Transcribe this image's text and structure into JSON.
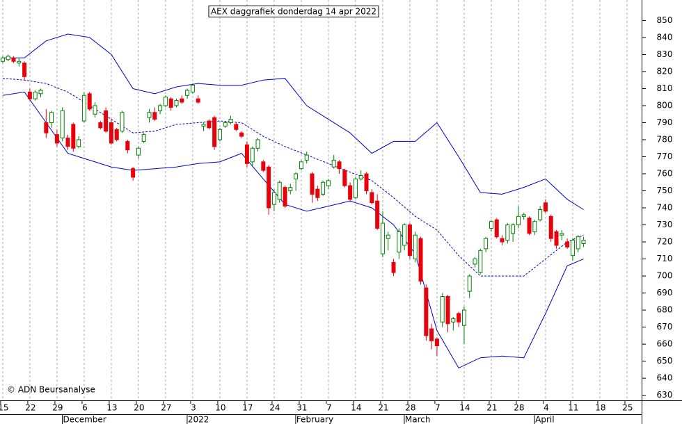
{
  "chart_data": {
    "type": "candlestick",
    "title": "AEX daggrafiek donderdag 14 apr 2022",
    "copyright": "© ADN Beursanalyse",
    "up_color": "#008000",
    "down_color": "#e8000b",
    "grid": "x",
    "ylim": [
      627,
      862
    ],
    "yticks": [
      630,
      640,
      650,
      660,
      670,
      680,
      690,
      700,
      710,
      720,
      730,
      740,
      750,
      760,
      770,
      780,
      790,
      800,
      810,
      820,
      830,
      840,
      850
    ],
    "xlim": [
      -0.5,
      117.7
    ],
    "xticks": [
      {
        "value": 0,
        "label": "15"
      },
      {
        "value": 5,
        "label": "22"
      },
      {
        "value": 10,
        "label": "29"
      },
      {
        "value": 15,
        "label": "6"
      },
      {
        "value": 20,
        "label": "13"
      },
      {
        "value": 25,
        "label": "20"
      },
      {
        "value": 30,
        "label": "27"
      },
      {
        "value": 35,
        "label": "3"
      },
      {
        "value": 40,
        "label": "10"
      },
      {
        "value": 45,
        "label": "17"
      },
      {
        "value": 50,
        "label": "24"
      },
      {
        "value": 55,
        "label": "31"
      },
      {
        "value": 60,
        "label": "7"
      },
      {
        "value": 65,
        "label": "14"
      },
      {
        "value": 70,
        "label": "21"
      },
      {
        "value": 75,
        "label": "28"
      },
      {
        "value": 80,
        "label": "7"
      },
      {
        "value": 85,
        "label": "14"
      },
      {
        "value": 90,
        "label": "21"
      },
      {
        "value": 95,
        "label": "28"
      },
      {
        "value": 100,
        "label": "4"
      },
      {
        "value": 105,
        "label": "11"
      },
      {
        "value": 110,
        "label": "18"
      },
      {
        "value": 115,
        "label": "25"
      }
    ],
    "month_ticks": [
      {
        "value": 12,
        "label": "December"
      },
      {
        "value": 35,
        "label": "2022"
      },
      {
        "value": 55,
        "label": "February"
      },
      {
        "value": 75,
        "label": "March"
      },
      {
        "value": 99,
        "label": "April"
      }
    ],
    "candles": [
      [
        826,
        829,
        825,
        828
      ],
      [
        827,
        830,
        826,
        829
      ],
      [
        828,
        829,
        825,
        826
      ],
      [
        825,
        828,
        823,
        826
      ],
      [
        825,
        826,
        815,
        817
      ],
      [
        808,
        810,
        803,
        804
      ],
      [
        804,
        809,
        803,
        808
      ],
      [
        807,
        810,
        805,
        809
      ],
      [
        790,
        798,
        781,
        784
      ],
      [
        790,
        797,
        787,
        796
      ],
      [
        783,
        786,
        776,
        778
      ],
      [
        781,
        799,
        779,
        797
      ],
      [
        781,
        783,
        774,
        776
      ],
      [
        789,
        790,
        773,
        775
      ],
      [
        776,
        782,
        775,
        780
      ],
      [
        791,
        808,
        790,
        806
      ],
      [
        807,
        808,
        797,
        798
      ],
      [
        795,
        802,
        793,
        800
      ],
      [
        790,
        791,
        786,
        787
      ],
      [
        797,
        799,
        784,
        785
      ],
      [
        790,
        792,
        777,
        778
      ],
      [
        786,
        787,
        779,
        780
      ],
      [
        785,
        797,
        784,
        796
      ],
      [
        779,
        780,
        772,
        774
      ],
      [
        763,
        764,
        756,
        758
      ],
      [
        771,
        776,
        769,
        775
      ],
      [
        779,
        784,
        778,
        783
      ],
      [
        793,
        798,
        790,
        796
      ],
      [
        796,
        799,
        791,
        792
      ],
      [
        797,
        801,
        795,
        800
      ],
      [
        800,
        806,
        799,
        805
      ],
      [
        804,
        805,
        797,
        799
      ],
      [
        800,
        804,
        799,
        803
      ],
      [
        804,
        806,
        801,
        802
      ],
      [
        806,
        810,
        804,
        809
      ],
      [
        808,
        813,
        807,
        812
      ],
      [
        804,
        806,
        801,
        802
      ],
      [
        788,
        790,
        785,
        789
      ],
      [
        791,
        792,
        786,
        787
      ],
      [
        793,
        794,
        774,
        776
      ],
      [
        780,
        787,
        779,
        786
      ],
      [
        788,
        791,
        787,
        790
      ],
      [
        790,
        794,
        789,
        792
      ],
      [
        789,
        790,
        785,
        786
      ],
      [
        784,
        785,
        781,
        782
      ],
      [
        777,
        779,
        764,
        766
      ],
      [
        767,
        776,
        764,
        775
      ],
      [
        775,
        781,
        773,
        780
      ],
      [
        767,
        768,
        761,
        762
      ],
      [
        764,
        765,
        736,
        740
      ],
      [
        742,
        751,
        738,
        749
      ],
      [
        745,
        756,
        743,
        755
      ],
      [
        752,
        753,
        740,
        741
      ],
      [
        750,
        754,
        748,
        752
      ],
      [
        757,
        761,
        750,
        760
      ],
      [
        763,
        768,
        762,
        767
      ],
      [
        768,
        773,
        766,
        771
      ],
      [
        760,
        761,
        743,
        748
      ],
      [
        751,
        753,
        744,
        746
      ],
      [
        748,
        756,
        747,
        755
      ],
      [
        753,
        757,
        751,
        756
      ],
      [
        764,
        771,
        763,
        768
      ],
      [
        767,
        768,
        760,
        763
      ],
      [
        762,
        763,
        752,
        753
      ],
      [
        753,
        755,
        744,
        745
      ],
      [
        746,
        758,
        745,
        757
      ],
      [
        757,
        762,
        756,
        759
      ],
      [
        760,
        761,
        748,
        750
      ],
      [
        749,
        751,
        742,
        743
      ],
      [
        744,
        748,
        727,
        728
      ],
      [
        713,
        738,
        711,
        731
      ],
      [
        722,
        726,
        715,
        724
      ],
      [
        708,
        710,
        700,
        702
      ],
      [
        714,
        728,
        710,
        726
      ],
      [
        718,
        731,
        715,
        730
      ],
      [
        730,
        731,
        710,
        712
      ],
      [
        710,
        726,
        708,
        724
      ],
      [
        722,
        723,
        695,
        697
      ],
      [
        693,
        695,
        662,
        665
      ],
      [
        669,
        672,
        657,
        662
      ],
      [
        663,
        664,
        653,
        659
      ],
      [
        673,
        690,
        670,
        688
      ],
      [
        688,
        689,
        667,
        672
      ],
      [
        673,
        676,
        668,
        675
      ],
      [
        678,
        679,
        670,
        673
      ],
      [
        671,
        682,
        660,
        680
      ],
      [
        691,
        701,
        687,
        700
      ],
      [
        707,
        711,
        705,
        710
      ],
      [
        702,
        716,
        701,
        715
      ],
      [
        716,
        723,
        714,
        722
      ],
      [
        728,
        733,
        726,
        732
      ],
      [
        733,
        734,
        722,
        723
      ],
      [
        722,
        724,
        718,
        720
      ],
      [
        721,
        731,
        719,
        730
      ],
      [
        725,
        731,
        720,
        730
      ],
      [
        730,
        741,
        728,
        735
      ],
      [
        735,
        737,
        733,
        736
      ],
      [
        734,
        735,
        724,
        725
      ],
      [
        726,
        733,
        724,
        732
      ],
      [
        733,
        741,
        732,
        739
      ],
      [
        743,
        745,
        737,
        738
      ],
      [
        735,
        736,
        720,
        722
      ],
      [
        726,
        727,
        716,
        718
      ],
      [
        724,
        727,
        721,
        725
      ],
      [
        720,
        722,
        716,
        717
      ],
      [
        712,
        722,
        709,
        721
      ],
      [
        716,
        724,
        714,
        723
      ],
      [
        719,
        723,
        717,
        721
      ]
    ],
    "bands": {
      "color": "#0000cc",
      "x": [
        0,
        4,
        8,
        12,
        16,
        20,
        24,
        28,
        32,
        36,
        40,
        44,
        48,
        52,
        56,
        60,
        64,
        68,
        72,
        76,
        80,
        84,
        88,
        92,
        96,
        100,
        104,
        107
      ],
      "upper": [
        828,
        828,
        838,
        842,
        840,
        830,
        810,
        807,
        811,
        813,
        812,
        812,
        815,
        816,
        800,
        792,
        784,
        772,
        779,
        779,
        790,
        770,
        749,
        748,
        752,
        757,
        745,
        739
      ],
      "middle": [
        816,
        815,
        813,
        808,
        800,
        792,
        784,
        785,
        789,
        790,
        791,
        790,
        782,
        776,
        771,
        766,
        761,
        756,
        746,
        735,
        727,
        712,
        700,
        700,
        700,
        710,
        720,
        724
      ],
      "lower": [
        806,
        808,
        790,
        772,
        768,
        764,
        762,
        763,
        764,
        766,
        767,
        772,
        757,
        742,
        738,
        741,
        744,
        740,
        730,
        713,
        668,
        646,
        652,
        653,
        652,
        678,
        706,
        710
      ]
    }
  }
}
